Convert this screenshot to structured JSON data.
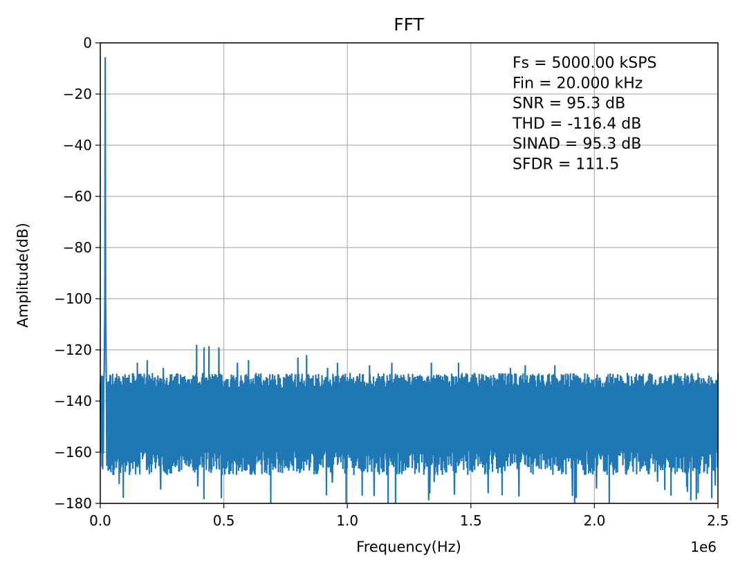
{
  "chart_data": {
    "type": "line",
    "title": "FFT",
    "xlabel": "Frequency(Hz)",
    "ylabel": "Amplitude(dB)",
    "x_offset_label": "1e6",
    "xlim": [
      0,
      2500000
    ],
    "ylim": [
      -180,
      0
    ],
    "x_ticks": [
      0,
      500000,
      1000000,
      1500000,
      2000000,
      2500000
    ],
    "x_tick_labels": [
      "0.0",
      "0.5",
      "1.0",
      "1.5",
      "2.0",
      "2.5"
    ],
    "y_ticks": [
      0,
      -20,
      -40,
      -60,
      -80,
      -100,
      -120,
      -140,
      -160,
      -180
    ],
    "y_tick_labels": [
      "0",
      "−20",
      "−40",
      "−60",
      "−80",
      "−100",
      "−120",
      "−140",
      "−160",
      "−180"
    ],
    "grid": true,
    "annotations": [
      "Fs = 5000.00 kSPS",
      "Fin = 20.000 kHz",
      "SNR = 95.3 dB",
      "THD = -116.4 dB",
      "SINAD = 95.3 dB",
      "SFDR = 111.5"
    ],
    "series": [
      {
        "color": "#1f77b4",
        "fundamental": {
          "x": 20000,
          "y": -5.6
        },
        "noise_floor_top": -133,
        "noise_floor_bottom": -165,
        "spurs": [
          {
            "x": 390000,
            "y": -118
          },
          {
            "x": 420000,
            "y": -119
          },
          {
            "x": 440000,
            "y": -118.5
          },
          {
            "x": 480000,
            "y": -119
          },
          {
            "x": 835000,
            "y": -122
          },
          {
            "x": 800000,
            "y": -123
          },
          {
            "x": 600000,
            "y": -124
          },
          {
            "x": 190000,
            "y": -124
          },
          {
            "x": 150000,
            "y": -125
          },
          {
            "x": 1340000,
            "y": -125
          },
          {
            "x": 1450000,
            "y": -125
          },
          {
            "x": 960000,
            "y": -125
          },
          {
            "x": 555000,
            "y": -125
          },
          {
            "x": 1180000,
            "y": -125
          },
          {
            "x": 1720000,
            "y": -126
          },
          {
            "x": 1840000,
            "y": -126
          },
          {
            "x": 1090000,
            "y": -126
          },
          {
            "x": 255000,
            "y": -127
          },
          {
            "x": 1660000,
            "y": -127
          },
          {
            "x": 920000,
            "y": -127
          }
        ],
        "dips": [
          {
            "x": 490000,
            "y": -178
          },
          {
            "x": 690000,
            "y": -180
          },
          {
            "x": 995000,
            "y": -180
          },
          {
            "x": 1165000,
            "y": -180
          },
          {
            "x": 1195000,
            "y": -180
          },
          {
            "x": 1920000,
            "y": -180
          },
          {
            "x": 2060000,
            "y": -180
          },
          {
            "x": 2475000,
            "y": -178
          },
          {
            "x": 1060000,
            "y": -177
          },
          {
            "x": 2310000,
            "y": -177
          },
          {
            "x": 1570000,
            "y": -176
          },
          {
            "x": 2420000,
            "y": -176
          }
        ]
      }
    ]
  }
}
